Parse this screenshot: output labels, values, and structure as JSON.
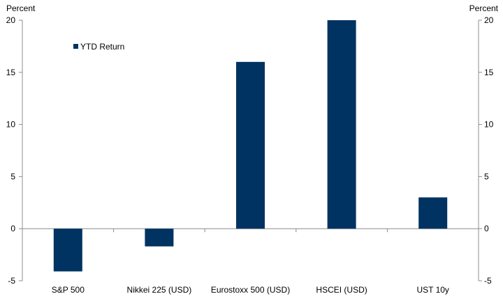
{
  "chart_data": {
    "type": "bar",
    "categories": [
      "S&P 500",
      "Nikkei 225 (USD)",
      "Eurostoxx 500 (USD)",
      "HSCEI (USD)",
      "UST 10y"
    ],
    "series": [
      {
        "name": "YTD Return",
        "values": [
          -4.1,
          -1.7,
          16.0,
          20.0,
          3.0
        ],
        "color": "#003361"
      }
    ],
    "left_axis_label": "Percent",
    "right_axis_label": "Percent",
    "ylim": [
      -5,
      20
    ],
    "yticks": [
      -5,
      0,
      5,
      10,
      15,
      20
    ],
    "grid": false,
    "legend_position": "top-left"
  }
}
